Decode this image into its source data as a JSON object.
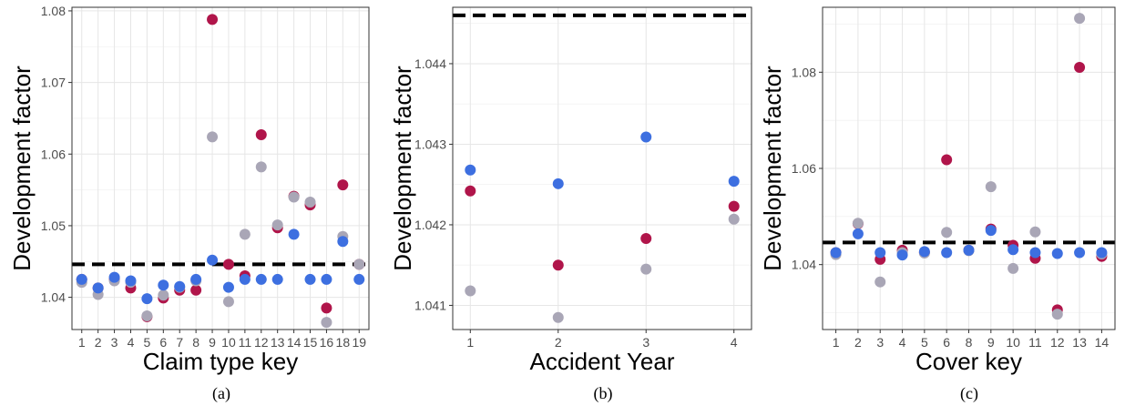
{
  "colors": {
    "red": "#b0154a",
    "grey": "#a9a6b6",
    "blue": "#3d6fe0",
    "ref_line": "#000000"
  },
  "chart_data": [
    {
      "type": "scatter",
      "caption": "(a)",
      "xlabel": "Claim type key",
      "ylabel": "Development factor",
      "categories": [
        "1",
        "2",
        "3",
        "4",
        "5",
        "6",
        "7",
        "8",
        "9",
        "10",
        "11",
        "12",
        "13",
        "14",
        "15",
        "16",
        "18",
        "19"
      ],
      "ylim": [
        1.0355,
        1.0805
      ],
      "yticks": [
        1.04,
        1.05,
        1.06,
        1.07,
        1.08
      ],
      "reference_line": 1.0446,
      "grid": true,
      "series": [
        {
          "color": "red",
          "values": [
            1.0425,
            1.0413,
            1.0425,
            1.0413,
            1.0373,
            1.0399,
            1.041,
            1.041,
            1.0788,
            1.0446,
            1.043,
            1.0627,
            1.0497,
            1.0541,
            1.0529,
            1.0385,
            1.0557,
            1.0446
          ]
        },
        {
          "color": "grey",
          "values": [
            1.0421,
            1.0404,
            1.0423,
            1.0421,
            1.0374,
            1.0403,
            1.0414,
            1.0423,
            1.0624,
            1.0394,
            1.0488,
            1.0582,
            1.0501,
            1.054,
            1.0533,
            1.0365,
            1.0485,
            1.0446
          ]
        },
        {
          "color": "blue",
          "values": [
            1.0425,
            1.0413,
            1.0428,
            1.0423,
            1.0398,
            1.0417,
            1.0415,
            1.0425,
            1.0452,
            1.0414,
            1.0425,
            1.0425,
            1.0425,
            1.0488,
            1.0425,
            1.0425,
            1.0478,
            1.0425
          ]
        }
      ]
    },
    {
      "type": "scatter",
      "caption": "(b)",
      "xlabel": "Accident Year",
      "ylabel": "Development factor",
      "categories": [
        "1",
        "2",
        "3",
        "4"
      ],
      "ylim": [
        1.0407,
        1.0447
      ],
      "yticks": [
        1.041,
        1.042,
        1.043,
        1.044
      ],
      "reference_line": 1.0446,
      "grid": true,
      "series": [
        {
          "color": "red",
          "values": [
            1.04242,
            1.0415,
            1.04183,
            1.04223
          ]
        },
        {
          "color": "grey",
          "values": [
            1.04118,
            1.04085,
            1.04145,
            1.04207
          ]
        },
        {
          "color": "blue",
          "values": [
            1.04268,
            1.04251,
            1.04309,
            1.04254
          ]
        }
      ]
    },
    {
      "type": "scatter",
      "caption": "(c)",
      "xlabel": "Cover key",
      "ylabel": "Development factor",
      "categories": [
        "1",
        "2",
        "3",
        "4",
        "5",
        "6",
        "8",
        "9",
        "10",
        "11",
        "12",
        "13",
        "14"
      ],
      "ylim": [
        1.0265,
        1.0935
      ],
      "yticks": [
        1.04,
        1.06,
        1.08
      ],
      "reference_line": 1.0446,
      "grid": true,
      "series": [
        {
          "color": "red",
          "values": [
            1.0425,
            1.0485,
            1.0411,
            1.043,
            1.0425,
            1.0618,
            1.043,
            1.0474,
            1.044,
            1.0413,
            1.0306,
            1.081,
            1.0417
          ]
        },
        {
          "color": "grey",
          "values": [
            1.0421,
            1.0486,
            1.0364,
            1.0425,
            1.0424,
            1.0467,
            1.0429,
            1.0562,
            1.0392,
            1.0468,
            1.0297,
            1.0912,
            1.0422
          ]
        },
        {
          "color": "blue",
          "values": [
            1.0425,
            1.0464,
            1.0425,
            1.042,
            1.0427,
            1.0425,
            1.043,
            1.0471,
            1.0431,
            1.0425,
            1.0423,
            1.0425,
            1.0425
          ]
        }
      ]
    }
  ]
}
